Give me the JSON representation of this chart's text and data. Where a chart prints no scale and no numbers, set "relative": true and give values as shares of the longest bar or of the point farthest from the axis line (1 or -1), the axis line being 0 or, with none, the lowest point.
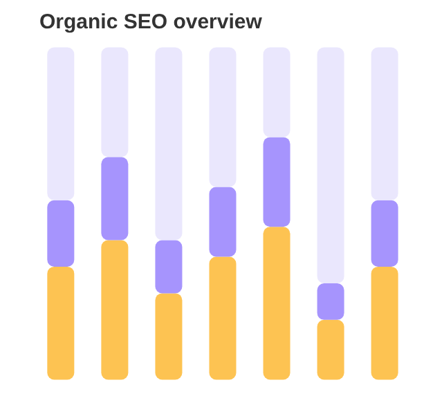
{
  "chart_data": {
    "type": "bar",
    "title": "Organic SEO overview",
    "relative": true,
    "stacked": true,
    "categories": [
      null,
      null,
      null,
      null,
      null,
      null,
      null
    ],
    "series": [
      {
        "color": "#fdc352",
        "values": [
          0.34,
          0.42,
          0.26,
          0.37,
          0.46,
          0.18,
          0.34
        ]
      },
      {
        "color": "#a694fd",
        "values": [
          0.2,
          0.25,
          0.16,
          0.21,
          0.27,
          0.11,
          0.2
        ]
      },
      {
        "color": "#eae7fd",
        "values": [
          0.46,
          0.33,
          0.58,
          0.42,
          0.27,
          0.71,
          0.46
        ]
      }
    ]
  }
}
